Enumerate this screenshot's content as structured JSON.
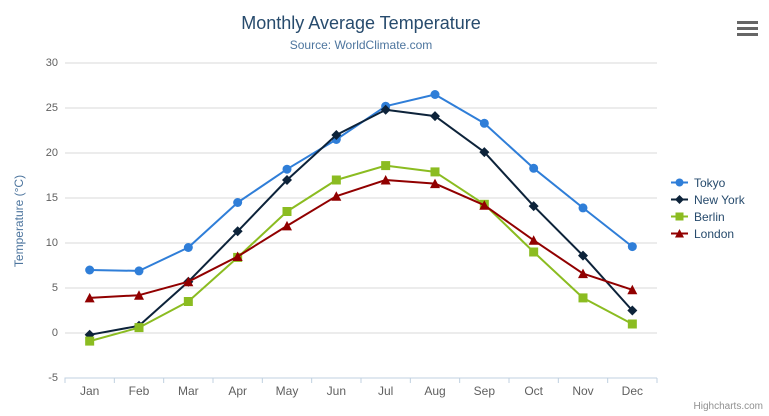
{
  "chart_data": {
    "type": "line",
    "title": "Monthly Average Temperature",
    "subtitle": "Source: WorldClimate.com",
    "xlabel": "",
    "ylabel": "Temperature (°C)",
    "categories": [
      "Jan",
      "Feb",
      "Mar",
      "Apr",
      "May",
      "Jun",
      "Jul",
      "Aug",
      "Sep",
      "Oct",
      "Nov",
      "Dec"
    ],
    "ylim": [
      -5,
      30
    ],
    "ytick_interval": 5,
    "grid": true,
    "legend_position": "right-middle",
    "series": [
      {
        "name": "Tokyo",
        "color": "#2f7ed8",
        "marker": "circle",
        "values": [
          7.0,
          6.9,
          9.5,
          14.5,
          18.2,
          21.5,
          25.2,
          26.5,
          23.3,
          18.3,
          13.9,
          9.6
        ]
      },
      {
        "name": "New York",
        "color": "#0d233a",
        "marker": "diamond",
        "values": [
          -0.2,
          0.8,
          5.7,
          11.3,
          17.0,
          22.0,
          24.8,
          24.1,
          20.1,
          14.1,
          8.6,
          2.5
        ]
      },
      {
        "name": "Berlin",
        "color": "#8bbc21",
        "marker": "square",
        "values": [
          -0.9,
          0.6,
          3.5,
          8.4,
          13.5,
          17.0,
          18.6,
          17.9,
          14.3,
          9.0,
          3.9,
          1.0
        ]
      },
      {
        "name": "London",
        "color": "#910000",
        "marker": "triangle",
        "values": [
          3.9,
          4.2,
          5.7,
          8.5,
          11.9,
          15.2,
          17.0,
          16.6,
          14.2,
          10.3,
          6.6,
          4.8
        ]
      }
    ],
    "colors": {
      "grid_line": "#d8d8d8",
      "axis_line": "#c0d0e0",
      "axis_label": "#606060",
      "title": "#274b6d",
      "subtitle": "#4d759e",
      "legend_text": "#274b6d"
    },
    "credit": "Highcharts.com"
  },
  "icons": {
    "export_menu": "hamburger-icon"
  }
}
